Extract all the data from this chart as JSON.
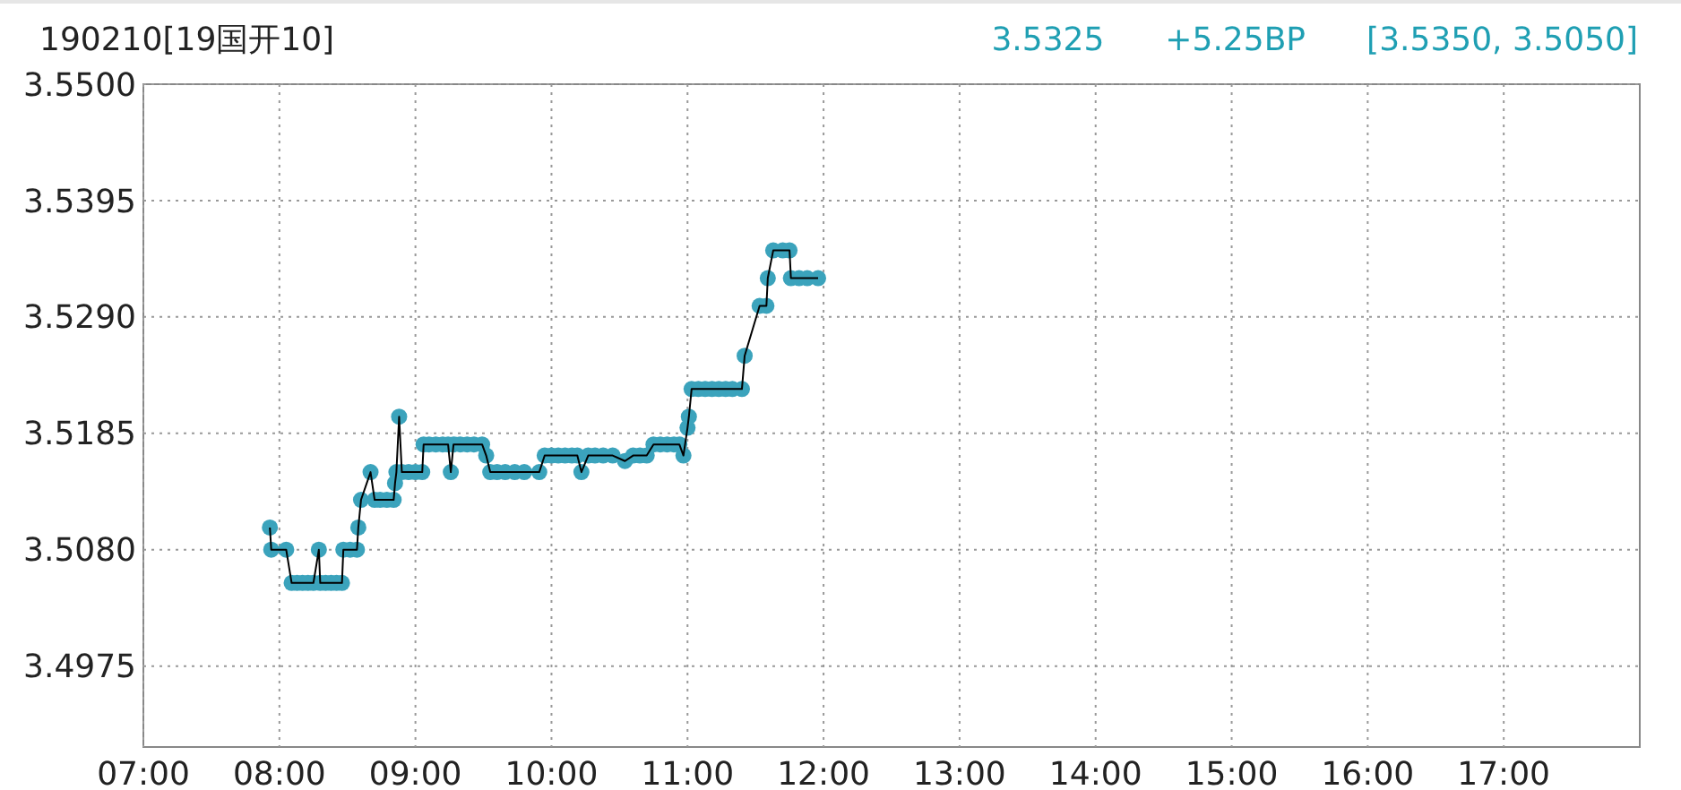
{
  "chart_data": {
    "type": "line",
    "title": "190210[19国开10]",
    "annotations": [
      "3.5325",
      "+5.25BP",
      "[3.5350, 3.5050]"
    ],
    "xlim": [
      7,
      18
    ],
    "xticks": [
      {
        "value": 7,
        "label": "07:00"
      },
      {
        "value": 8,
        "label": "08:00"
      },
      {
        "value": 9,
        "label": "09:00"
      },
      {
        "value": 10,
        "label": "10:00"
      },
      {
        "value": 11,
        "label": "11:00"
      },
      {
        "value": 12,
        "label": "12:00"
      },
      {
        "value": 13,
        "label": "13:00"
      },
      {
        "value": 14,
        "label": "14:00"
      },
      {
        "value": 15,
        "label": "15:00"
      },
      {
        "value": 16,
        "label": "16:00"
      },
      {
        "value": 17,
        "label": "17:00"
      }
    ],
    "ylim": [
      3.4902,
      3.55
    ],
    "yticks": [
      {
        "value": 3.4975,
        "label": "3.4975"
      },
      {
        "value": 3.508,
        "label": "3.5080"
      },
      {
        "value": 3.5185,
        "label": "3.5185"
      },
      {
        "value": 3.529,
        "label": "3.5290"
      },
      {
        "value": 3.5395,
        "label": "3.5395"
      },
      {
        "value": 3.55,
        "label": "3.5500"
      }
    ],
    "grid": true,
    "marker": "circle",
    "x": [
      7.93,
      7.94,
      8.05,
      8.09,
      8.13,
      8.17,
      8.21,
      8.25,
      8.29,
      8.3,
      8.34,
      8.38,
      8.42,
      8.46,
      8.47,
      8.52,
      8.57,
      8.58,
      8.6,
      8.67,
      8.7,
      8.74,
      8.79,
      8.84,
      8.85,
      8.86,
      8.88,
      8.9,
      8.95,
      9.0,
      9.05,
      9.06,
      9.1,
      9.15,
      9.2,
      9.24,
      9.26,
      9.28,
      9.33,
      9.38,
      9.43,
      9.49,
      9.52,
      9.55,
      9.6,
      9.66,
      9.73,
      9.8,
      9.91,
      9.95,
      10.0,
      10.05,
      10.1,
      10.15,
      10.19,
      10.22,
      10.27,
      10.32,
      10.38,
      10.45,
      10.54,
      10.6,
      10.65,
      10.7,
      10.75,
      10.8,
      10.85,
      10.9,
      10.94,
      10.97,
      11.0,
      11.01,
      11.03,
      11.08,
      11.13,
      11.18,
      11.23,
      11.28,
      11.33,
      11.4,
      11.42,
      11.53,
      11.58,
      11.59,
      11.63,
      11.7,
      11.75,
      11.76,
      11.82,
      11.88,
      11.96
    ],
    "series": [
      {
        "color": "#3ba3bc",
        "values": [
          3.51,
          3.508,
          3.508,
          3.505,
          3.505,
          3.505,
          3.505,
          3.505,
          3.508,
          3.505,
          3.505,
          3.505,
          3.505,
          3.505,
          3.508,
          3.508,
          3.508,
          3.51,
          3.5125,
          3.515,
          3.5125,
          3.5125,
          3.5125,
          3.5125,
          3.514,
          3.515,
          3.52,
          3.515,
          3.515,
          3.515,
          3.515,
          3.5175,
          3.5175,
          3.5175,
          3.5175,
          3.5175,
          3.515,
          3.5175,
          3.5175,
          3.5175,
          3.5175,
          3.5175,
          3.5165,
          3.515,
          3.515,
          3.515,
          3.515,
          3.515,
          3.515,
          3.5165,
          3.5165,
          3.5165,
          3.5165,
          3.5165,
          3.5165,
          3.515,
          3.5165,
          3.5165,
          3.5165,
          3.5165,
          3.516,
          3.5165,
          3.5165,
          3.5165,
          3.5175,
          3.5175,
          3.5175,
          3.5175,
          3.5175,
          3.5165,
          3.519,
          3.52,
          3.5225,
          3.5225,
          3.5225,
          3.5225,
          3.5225,
          3.5225,
          3.5225,
          3.5225,
          3.5255,
          3.53,
          3.53,
          3.5325,
          3.535,
          3.535,
          3.535,
          3.5325,
          3.5325,
          3.5325,
          3.5325
        ]
      }
    ]
  }
}
